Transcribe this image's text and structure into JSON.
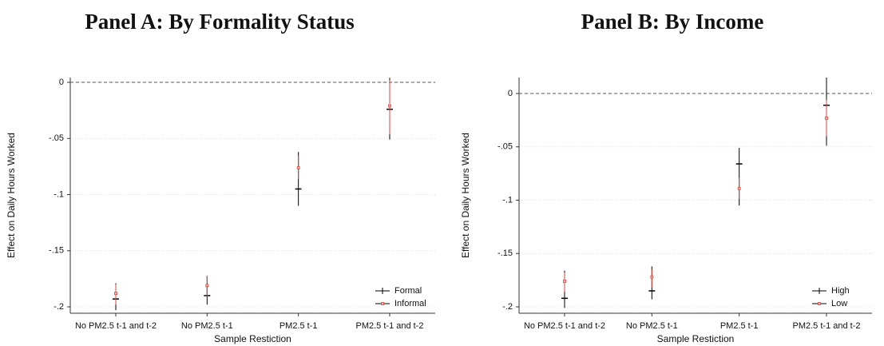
{
  "chart_data": [
    {
      "type": "coefplot",
      "title": "Panel A: By Formality Status",
      "x_label": "Sample Restiction",
      "y_label": "Effect on Daily Hours Worked",
      "categories": [
        "No PM2.5 t-1 and t-2",
        "No PM2.5 t-1",
        "PM2.5 t-1",
        "PM2.5 t-1 and t-2"
      ],
      "series": [
        {
          "name": "Formal",
          "color": "#000000",
          "values": [
            -0.193,
            -0.19,
            -0.095,
            -0.024
          ],
          "lower": [
            -0.203,
            -0.198,
            -0.11,
            -0.051
          ],
          "upper": [
            -0.179,
            -0.173,
            -0.062,
            0.004
          ]
        },
        {
          "name": "Informal",
          "color": "#d9463c",
          "values": [
            -0.188,
            -0.181,
            -0.076,
            -0.021
          ],
          "lower": [
            -0.198,
            -0.191,
            -0.086,
            -0.046
          ],
          "upper": [
            -0.18,
            -0.172,
            -0.065,
            0.002
          ]
        }
      ],
      "ylim": [
        -0.2057,
        0.0043
      ],
      "yticks": [
        0,
        {
          "value": -0.05,
          "label": "-.05"
        },
        {
          "value": -0.1,
          "label": "-.1"
        },
        {
          "value": -0.15,
          "label": "-.15"
        },
        {
          "value": -0.2,
          "label": "-.2"
        }
      ],
      "reference_line": 0,
      "grid": true,
      "legend": "lower-right"
    },
    {
      "type": "coefplot",
      "title": "Panel B: By Income",
      "x_label": "Sample Restiction",
      "y_label": "Effect on Daily Hours Worked",
      "categories": [
        "No PM2.5 t-1 and t-2",
        "No PM2.5 t-1",
        "PM2.5 t-1",
        "PM2.5 t-1 and t-2"
      ],
      "series": [
        {
          "name": "High",
          "color": "#000000",
          "values": [
            -0.192,
            -0.185,
            -0.066,
            -0.011
          ],
          "lower": [
            -0.201,
            -0.193,
            -0.105,
            -0.049
          ],
          "upper": [
            -0.166,
            -0.162,
            -0.051,
            0.015
          ]
        },
        {
          "name": "Low",
          "color": "#d9463c",
          "values": [
            -0.176,
            -0.172,
            -0.089,
            -0.023
          ],
          "lower": [
            -0.186,
            -0.182,
            -0.099,
            -0.04
          ],
          "upper": [
            -0.168,
            -0.165,
            -0.079,
            -0.006
          ]
        }
      ],
      "ylim": [
        -0.206,
        0.015
      ],
      "yticks": [
        0,
        {
          "value": -0.05,
          "label": "-.05"
        },
        {
          "value": -0.1,
          "label": "-.1"
        },
        {
          "value": -0.15,
          "label": "-.15"
        },
        {
          "value": -0.2,
          "label": "-.2"
        }
      ],
      "reference_line": 0,
      "grid": true,
      "legend": "lower-right"
    }
  ]
}
